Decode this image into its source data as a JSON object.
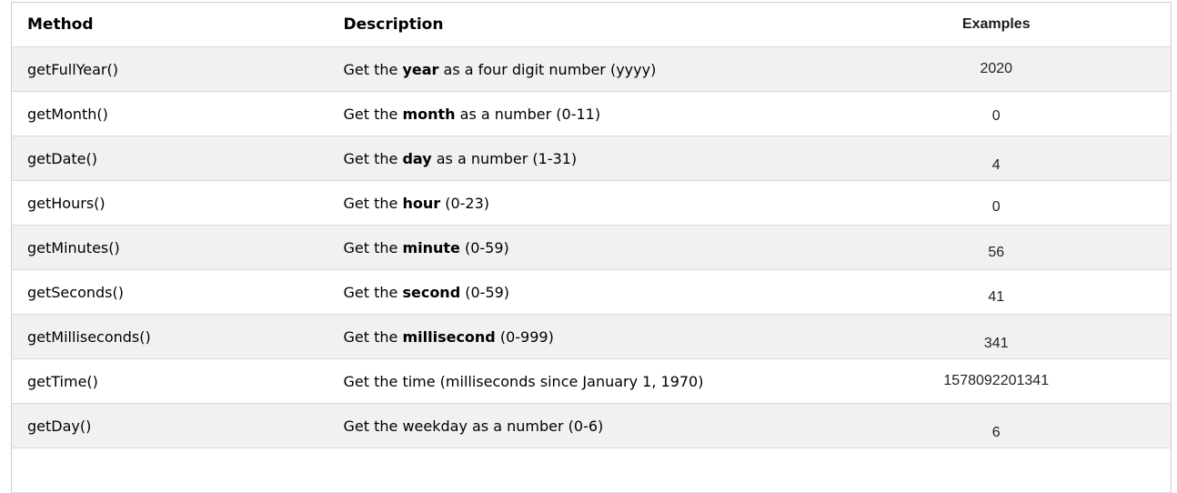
{
  "table": {
    "headers": {
      "method": "Method",
      "description": "Description",
      "examples": "Examples"
    },
    "rows": [
      {
        "method": "getFullYear()",
        "desc_prefix": "Get the ",
        "desc_bold": "year",
        "desc_suffix": " as a four digit number (yyyy)",
        "example": "2020"
      },
      {
        "method": "getMonth()",
        "desc_prefix": "Get the ",
        "desc_bold": "month",
        "desc_suffix": " as a number (0-11)",
        "example": "0"
      },
      {
        "method": "getDate()",
        "desc_prefix": "Get the ",
        "desc_bold": "day",
        "desc_suffix": " as a number (1-31)",
        "example": "4"
      },
      {
        "method": "getHours()",
        "desc_prefix": "Get the ",
        "desc_bold": "hour",
        "desc_suffix": " (0-23)",
        "example": "0"
      },
      {
        "method": "getMinutes()",
        "desc_prefix": "Get the ",
        "desc_bold": "minute",
        "desc_suffix": " (0-59)",
        "example": "56"
      },
      {
        "method": "getSeconds()",
        "desc_prefix": "Get the ",
        "desc_bold": "second",
        "desc_suffix": " (0-59)",
        "example": "41"
      },
      {
        "method": "getMilliseconds()",
        "desc_prefix": "Get the ",
        "desc_bold": "millisecond",
        "desc_suffix": " (0-999)",
        "example": "341"
      },
      {
        "method": "getTime()",
        "desc_prefix": "Get the time (milliseconds since January 1, 1970)",
        "desc_bold": "",
        "desc_suffix": "",
        "example": "1578092201341"
      },
      {
        "method": "getDay()",
        "desc_prefix": "Get the weekday as a number (0-6)",
        "desc_bold": "",
        "desc_suffix": "",
        "example": "6"
      }
    ],
    "colors": {
      "row_alt_bg": "#f1f1f1",
      "row_border": "#d9d9d9",
      "outer_border": "#cccccc",
      "text": "#000000",
      "example_text": "#222222"
    }
  }
}
